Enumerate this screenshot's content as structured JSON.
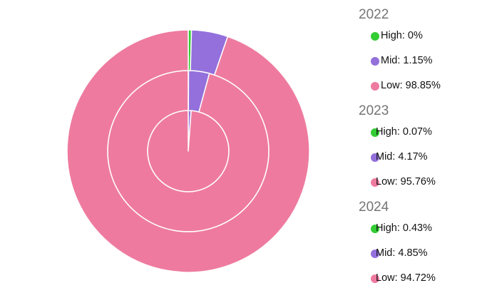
{
  "chart_data": {
    "type": "pie",
    "subtype": "nested-donut",
    "rings_inner_to_outer": [
      "2022",
      "2023",
      "2024"
    ],
    "categories": [
      "High",
      "Mid",
      "Low"
    ],
    "colors": {
      "High": "#33cc33",
      "Mid": "#9370db",
      "Low": "#ee7b9f"
    },
    "groups": [
      {
        "year": "2022",
        "slices": [
          {
            "category": "High",
            "value": 0,
            "label": "High: 0%"
          },
          {
            "category": "Mid",
            "value": 1.15,
            "label": "Mid: 1.15%"
          },
          {
            "category": "Low",
            "value": 98.85,
            "label": "Low: 98.85%"
          }
        ]
      },
      {
        "year": "2023",
        "slices": [
          {
            "category": "High",
            "value": 0.07,
            "label": "High: 0.07%"
          },
          {
            "category": "Mid",
            "value": 4.17,
            "label": "Mid: 4.17%"
          },
          {
            "category": "Low",
            "value": 95.76,
            "label": "Low: 95.76%"
          }
        ]
      },
      {
        "year": "2024",
        "slices": [
          {
            "category": "High",
            "value": 0.43,
            "label": "High: 0.43%"
          },
          {
            "category": "Mid",
            "value": 4.85,
            "label": "Mid: 4.85%"
          },
          {
            "category": "Low",
            "value": 94.72,
            "label": "Low: 94.72%"
          }
        ]
      }
    ],
    "legend_position": "right"
  }
}
